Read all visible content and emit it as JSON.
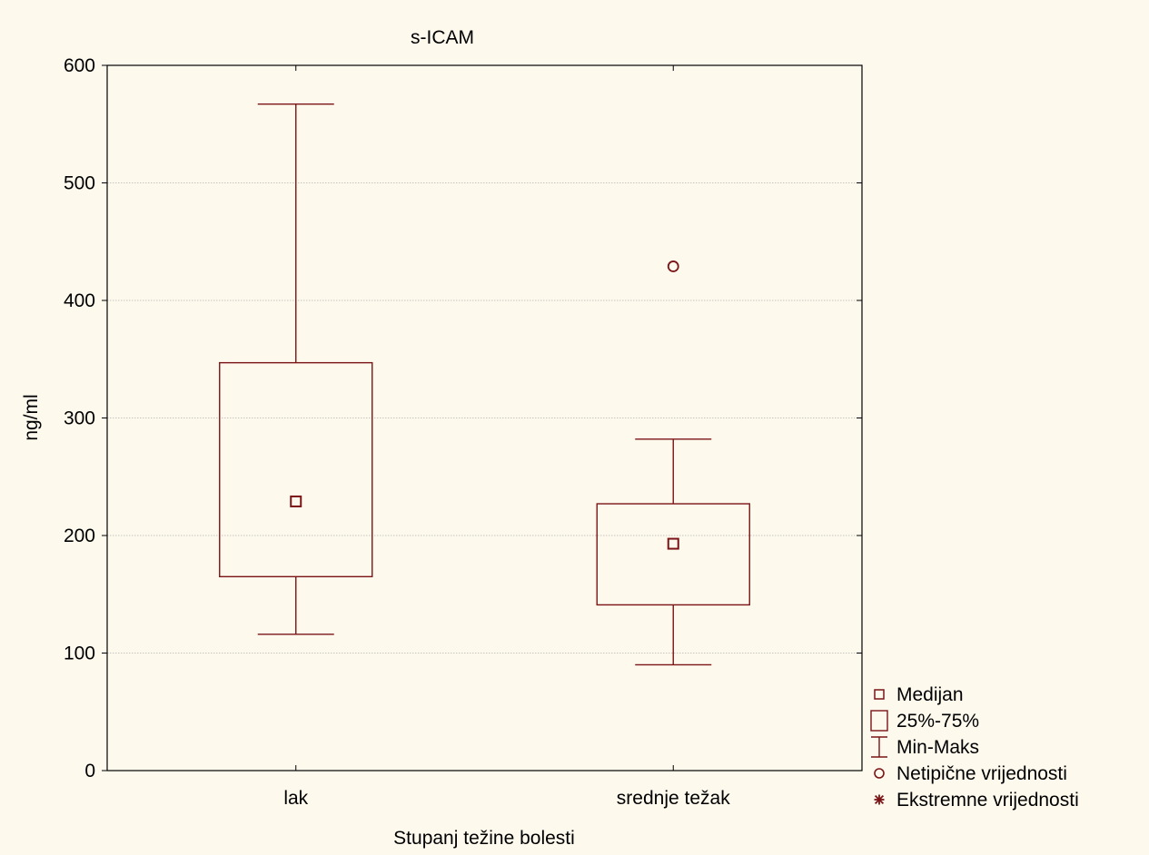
{
  "chart_data": {
    "type": "box",
    "title": "s-ICAM",
    "xlabel": "Stupanj težine bolesti",
    "ylabel": "ng/ml",
    "ylim": [
      0,
      600
    ],
    "yticks": [
      0,
      100,
      200,
      300,
      400,
      500,
      600
    ],
    "grid": true,
    "legend_position": "right-bottom-outside",
    "categories": [
      "lak",
      "srednje težak"
    ],
    "boxes": [
      {
        "category": "lak",
        "min": 116,
        "q1": 165,
        "median": 229,
        "q3": 347,
        "max": 567,
        "outliers": [],
        "extremes": []
      },
      {
        "category": "srednje težak",
        "min": 90,
        "q1": 141,
        "median": 193,
        "q3": 227,
        "max": 282,
        "outliers": [
          429
        ],
        "extremes": []
      }
    ],
    "legend": [
      {
        "symbol": "median",
        "label": "Medijan"
      },
      {
        "symbol": "box",
        "label": "25%-75%"
      },
      {
        "symbol": "whisker",
        "label": "Min-Maks"
      },
      {
        "symbol": "outlier",
        "label": "Netipične vrijednosti"
      },
      {
        "symbol": "extreme",
        "label": "Ekstremne vrijednosti"
      }
    ],
    "colors": {
      "series": "#7b1416",
      "background": "#fdf9ed",
      "grid": "#b4b4b4"
    }
  }
}
